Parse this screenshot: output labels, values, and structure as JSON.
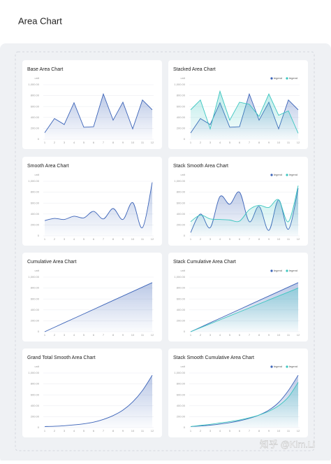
{
  "page_title": "Area  Chart",
  "watermark": "知乎 @Kim.Li",
  "chart_data": [
    {
      "type": "area",
      "title": "Base Area Chart",
      "ylabel": "unit",
      "smooth": false,
      "grid": true,
      "categories": [
        "1",
        "2",
        "3",
        "4",
        "5",
        "6",
        "7",
        "8",
        "9",
        "10",
        "11",
        "12"
      ],
      "series": [
        {
          "color": "#3b63b8",
          "values": [
            120,
            380,
            270,
            670,
            220,
            230,
            830,
            350,
            680,
            190,
            720,
            540
          ]
        }
      ],
      "ylim": [
        0,
        1000
      ],
      "yticks": [
        0,
        {
          "value": 200,
          "label": "200.00"
        },
        {
          "value": 400,
          "label": "400.00"
        },
        {
          "value": 600,
          "label": "600.00"
        },
        {
          "value": 800,
          "label": "800.00"
        },
        {
          "value": 1000,
          "label": "1,000.00"
        }
      ]
    },
    {
      "type": "area",
      "title": "Stacked Area Chart",
      "ylabel": "unit",
      "smooth": false,
      "grid": true,
      "legend": "top-right",
      "categories": [
        "1",
        "2",
        "3",
        "4",
        "5",
        "6",
        "7",
        "8",
        "9",
        "10",
        "11",
        "12"
      ],
      "series": [
        {
          "name": "legend",
          "color": "#3b63b8",
          "values": [
            115,
            380,
            270,
            670,
            220,
            230,
            830,
            350,
            680,
            190,
            720,
            540
          ]
        },
        {
          "name": "legend",
          "color": "#3cc6c0",
          "values": [
            540,
            720,
            190,
            880,
            350,
            680,
            640,
            420,
            830,
            440,
            520,
            110
          ]
        }
      ],
      "ylim": [
        0,
        1000
      ],
      "yticks": [
        0,
        {
          "value": 200,
          "label": "200.00"
        },
        {
          "value": 400,
          "label": "400.00"
        },
        {
          "value": 600,
          "label": "600.00"
        },
        {
          "value": 800,
          "label": "800.00"
        },
        {
          "value": 1000,
          "label": "1,000.00"
        }
      ]
    },
    {
      "type": "area",
      "title": "Smooth Area Chart",
      "ylabel": "unit",
      "smooth": true,
      "grid": true,
      "categories": [
        "1",
        "2",
        "3",
        "4",
        "5",
        "6",
        "7",
        "8",
        "9",
        "10",
        "11",
        "12"
      ],
      "series": [
        {
          "color": "#3b63b8",
          "values": [
            280,
            320,
            300,
            360,
            330,
            450,
            310,
            500,
            300,
            610,
            150,
            980
          ]
        }
      ],
      "ylim": [
        0,
        1000
      ],
      "yticks": [
        0,
        {
          "value": 200,
          "label": "200.00"
        },
        {
          "value": 400,
          "label": "400.00"
        },
        {
          "value": 600,
          "label": "600.00"
        },
        {
          "value": 800,
          "label": "800.00"
        },
        {
          "value": 1000,
          "label": "1,000.00"
        }
      ]
    },
    {
      "type": "area",
      "title": "Stack Smooth Area Chart",
      "ylabel": "unit",
      "smooth": true,
      "grid": true,
      "legend": "top-right",
      "categories": [
        "1",
        "2",
        "3",
        "4",
        "5",
        "6",
        "7",
        "8",
        "9",
        "10",
        "11",
        "12"
      ],
      "series": [
        {
          "name": "legend",
          "color": "#3b63b8",
          "values": [
            60,
            400,
            150,
            720,
            580,
            800,
            260,
            540,
            100,
            660,
            120,
            870
          ]
        },
        {
          "name": "legend",
          "color": "#3cc6c0",
          "values": [
            260,
            380,
            310,
            300,
            290,
            270,
            480,
            560,
            520,
            660,
            260,
            920
          ]
        }
      ],
      "ylim": [
        0,
        1000
      ],
      "yticks": [
        0,
        {
          "value": 200,
          "label": "200.00"
        },
        {
          "value": 400,
          "label": "400.00"
        },
        {
          "value": 600,
          "label": "600.00"
        },
        {
          "value": 800,
          "label": "800.00"
        },
        {
          "value": 1000,
          "label": "1,000.00"
        }
      ]
    },
    {
      "type": "area",
      "title": "Cumulative Area Chart",
      "ylabel": "unit",
      "smooth": false,
      "grid": true,
      "categories": [
        "1",
        "2",
        "3",
        "4",
        "5",
        "6",
        "7",
        "8",
        "9",
        "10",
        "11",
        "12"
      ],
      "series": [
        {
          "color": "#3b63b8",
          "values": [
            0,
            82,
            164,
            245,
            327,
            409,
            491,
            573,
            655,
            736,
            818,
            900
          ]
        }
      ],
      "ylim": [
        0,
        1000
      ],
      "yticks": [
        0,
        {
          "value": 200,
          "label": "200.00"
        },
        {
          "value": 400,
          "label": "400.00"
        },
        {
          "value": 600,
          "label": "600.00"
        },
        {
          "value": 800,
          "label": "800.00"
        },
        {
          "value": 1000,
          "label": "1,000.00"
        }
      ]
    },
    {
      "type": "area",
      "title": "Stack Cumulative Area Chart",
      "ylabel": "unit",
      "smooth": false,
      "grid": true,
      "legend": "top-right",
      "categories": [
        "1",
        "2",
        "3",
        "4",
        "5",
        "6",
        "7",
        "8",
        "9",
        "10",
        "11",
        "12"
      ],
      "series": [
        {
          "name": "legend",
          "color": "#3b63b8",
          "values": [
            0,
            82,
            164,
            245,
            327,
            409,
            491,
            573,
            655,
            736,
            818,
            900
          ]
        },
        {
          "name": "legend",
          "color": "#3cc6c0",
          "values": [
            0,
            73,
            145,
            218,
            291,
            364,
            436,
            509,
            582,
            655,
            727,
            800
          ]
        }
      ],
      "ylim": [
        0,
        1000
      ],
      "yticks": [
        0,
        {
          "value": 200,
          "label": "200.00"
        },
        {
          "value": 400,
          "label": "400.00"
        },
        {
          "value": 600,
          "label": "600.00"
        },
        {
          "value": 800,
          "label": "800.00"
        },
        {
          "value": 1000,
          "label": "1,000.00"
        }
      ]
    },
    {
      "type": "area",
      "title": "Grand Total Smooth Area Chart",
      "ylabel": "unit",
      "smooth": true,
      "grid": true,
      "categories": [
        "1",
        "2",
        "3",
        "4",
        "5",
        "6",
        "7",
        "8",
        "9",
        "10",
        "11",
        "12"
      ],
      "series": [
        {
          "color": "#3b63b8",
          "values": [
            20,
            25,
            35,
            50,
            70,
            100,
            150,
            220,
            320,
            470,
            680,
            960
          ]
        }
      ],
      "ylim": [
        0,
        1000
      ],
      "yticks": [
        0,
        {
          "value": 200,
          "label": "200.00"
        },
        {
          "value": 400,
          "label": "400.00"
        },
        {
          "value": 600,
          "label": "600.00"
        },
        {
          "value": 800,
          "label": "800.00"
        },
        {
          "value": 1000,
          "label": "1,000.00"
        }
      ]
    },
    {
      "type": "area",
      "title": "Stack Smooth Cumulative Area Chart",
      "ylabel": "unit",
      "smooth": true,
      "grid": true,
      "legend": "top-right",
      "categories": [
        "1",
        "2",
        "3",
        "4",
        "5",
        "6",
        "7",
        "8",
        "9",
        "10",
        "11",
        "12"
      ],
      "series": [
        {
          "name": "legend",
          "color": "#3b63b8",
          "values": [
            20,
            30,
            45,
            65,
            90,
            125,
            170,
            230,
            320,
            460,
            680,
            960
          ]
        },
        {
          "name": "legend",
          "color": "#3cc6c0",
          "values": [
            20,
            40,
            60,
            85,
            110,
            140,
            180,
            230,
            300,
            400,
            560,
            830
          ]
        }
      ],
      "ylim": [
        0,
        1000
      ],
      "yticks": [
        0,
        {
          "value": 200,
          "label": "200.00"
        },
        {
          "value": 400,
          "label": "400.00"
        },
        {
          "value": 600,
          "label": "600.00"
        },
        {
          "value": 800,
          "label": "800.00"
        },
        {
          "value": 1000,
          "label": "1,000.00"
        }
      ]
    }
  ]
}
